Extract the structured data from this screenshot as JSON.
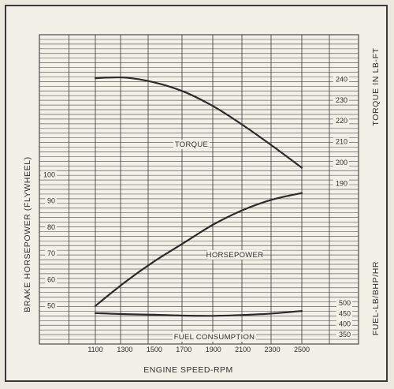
{
  "chart_data": {
    "type": "line",
    "title": "",
    "xlabel": "ENGINE SPEED-RPM",
    "ylabel_left": "BRAKE HORSEPOWER (FLYWHEEL)",
    "ylabel_right_top": "TORQUE IN LB-FT",
    "ylabel_right_bottom": "FUEL-LB/BHP/HR",
    "x_ticks": [
      1100,
      1300,
      1500,
      1700,
      1900,
      2100,
      2300,
      2500
    ],
    "left_ticks": [
      100,
      90,
      80,
      70,
      60,
      50
    ],
    "torque_ticks": [
      240,
      230,
      220,
      210,
      200,
      190
    ],
    "fuel_ticks": [
      500,
      450,
      400,
      350
    ],
    "horsepower_scale": [
      40,
      110
    ],
    "torque_scale": [
      175,
      250
    ],
    "fuel_scale": [
      320,
      560
    ],
    "series": [
      {
        "name": "TORQUE",
        "axis": "torque",
        "x": [
          1100,
          1300,
          1500,
          1700,
          1900,
          2100,
          2300,
          2500
        ],
        "values": [
          240.5,
          240.8,
          238.5,
          234,
          227,
          218,
          208,
          197.5
        ]
      },
      {
        "name": "HORSEPOWER",
        "axis": "horsepower",
        "x": [
          1100,
          1300,
          1500,
          1700,
          1900,
          2100,
          2300,
          2500
        ],
        "values": [
          50,
          59,
          67,
          74,
          81,
          86.5,
          90.5,
          93
        ]
      },
      {
        "name": "FUEL CONSUMPTION",
        "axis": "fuel",
        "x": [
          1100,
          1300,
          1500,
          1700,
          1900,
          2100,
          2300,
          2500
        ],
        "values": [
          452,
          447,
          444,
          440,
          439,
          443,
          450,
          462
        ]
      }
    ]
  },
  "colors": {
    "curve": "#2a2a2a",
    "grid": "#4a4a4a",
    "paper": "#f3f0e7"
  }
}
